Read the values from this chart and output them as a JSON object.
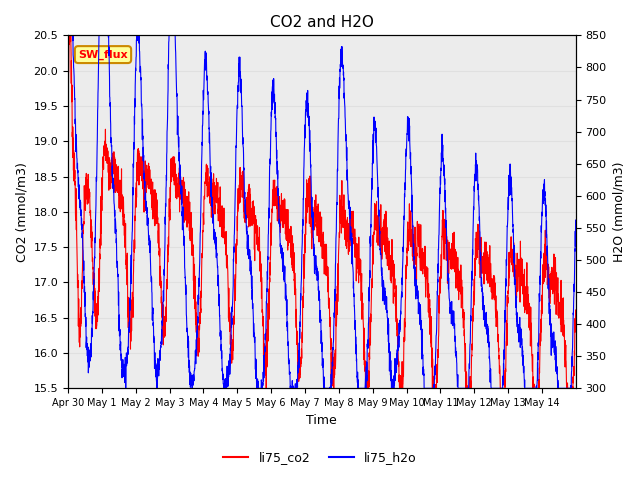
{
  "title": "CO2 and H2O",
  "xlabel": "Time",
  "ylabel_left": "CO2 (mmol/m3)",
  "ylabel_right": "H2O (mmol/m3)",
  "ylim_left": [
    15.5,
    20.5
  ],
  "ylim_right": [
    300,
    850
  ],
  "legend_labels": [
    "li75_co2",
    "li75_h2o"
  ],
  "legend_colors": [
    "red",
    "blue"
  ],
  "annotation_text": "SW_flux",
  "annotation_box_color": "#FFFF99",
  "annotation_border_color": "#CC8800",
  "annotation_text_color": "red",
  "grid_color": "#e0e0e0",
  "background_color": "#ececec",
  "n_days": 15,
  "co2_base": 17.5,
  "h2o_base": 530
}
